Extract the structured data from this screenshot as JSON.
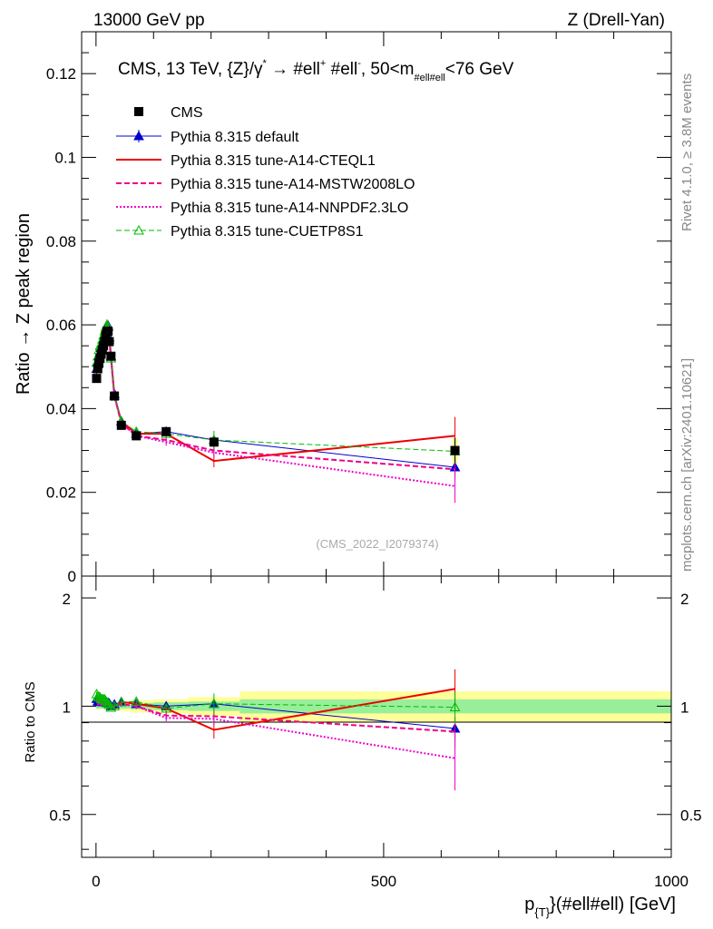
{
  "header": {
    "left": "13000 GeV pp",
    "right": "Z (Drell-Yan)",
    "side_top": "Rivet 4.1.0, ≥ 3.8M events",
    "side_bottom": "mcplots.cern.ch [arXiv:2401.10621]"
  },
  "chart_data": {
    "type": "line",
    "title": "CMS, 13 TeV, {Z}/γ* → #ell⁺ #ell⁻,  50<m#ell#ell<76 GeV",
    "title_parts": {
      "main": "CMS, 13 TeV, {Z}/γ",
      "star": "*",
      "arrow": " →  #ell",
      "plus": "+",
      "mid": " #ell",
      "minus": "-",
      "range_start": ",  50<m",
      "range_sub": "#ell#ell",
      "range_end": "<76 GeV"
    },
    "watermark": "(CMS_2022_I2079374)",
    "xlabel": "p",
    "xlabel_sub": "{T}",
    "xlabel_rest": "}(#ell#ell) [GeV]",
    "ylabel": "Ratio → Z peak region",
    "ratio_ylabel": "Ratio to CMS",
    "xlim": [
      -25,
      1000
    ],
    "ylim": [
      0,
      0.13
    ],
    "ratio_ylim": [
      0.38,
      2.3
    ],
    "x_ticks": [
      "0",
      "500",
      "1000"
    ],
    "y_ticks": [
      "0",
      "0.02",
      "0.04",
      "0.06",
      "0.08",
      "0.1",
      "0.12"
    ],
    "ratio_y_ticks": [
      "0.5",
      "1",
      "2"
    ],
    "x": [
      1,
      3,
      5,
      7,
      9,
      11,
      13,
      15,
      17,
      19,
      21,
      23,
      26,
      32,
      44,
      70,
      122,
      205,
      624
    ],
    "data": {
      "name": "CMS",
      "values": [
        0.0472,
        0.0495,
        0.0508,
        0.052,
        0.053,
        0.054,
        0.055,
        0.056,
        0.0575,
        0.0585,
        0.0585,
        0.056,
        0.0525,
        0.043,
        0.036,
        0.0335,
        0.0345,
        0.032,
        0.03
      ],
      "errors": [
        0.001,
        0.001,
        0.001,
        0.001,
        0.001,
        0.001,
        0.001,
        0.001,
        0.001,
        0.001,
        0.001,
        0.001,
        0.001,
        0.0008,
        0.0007,
        0.0006,
        0.0008,
        0.001,
        0.003
      ]
    },
    "band_edges": [
      0,
      10,
      20,
      40,
      60,
      100,
      160,
      250,
      1000
    ],
    "band_stat": [
      0.015,
      0.015,
      0.015,
      0.015,
      0.02,
      0.025,
      0.03,
      0.045
    ],
    "band_total": [
      0.02,
      0.02,
      0.025,
      0.03,
      0.04,
      0.045,
      0.06,
      0.1
    ],
    "series": [
      {
        "name": "Pythia 8.315 default",
        "color": "#0000cc",
        "dash": "solid",
        "width": 1,
        "marker": "triangle-filled",
        "values": [
          0.0495,
          0.051,
          0.0525,
          0.0535,
          0.0545,
          0.0555,
          0.0565,
          0.0575,
          0.059,
          0.0598,
          0.0598,
          0.057,
          0.0525,
          0.0435,
          0.037,
          0.034,
          0.0345,
          0.0325,
          0.026
        ],
        "errors": [
          0.0008,
          0.0008,
          0.0008,
          0.0008,
          0.0008,
          0.0008,
          0.0008,
          0.0008,
          0.0008,
          0.0008,
          0.0008,
          0.0008,
          0.0008,
          0.0007,
          0.0006,
          0.0006,
          0.0008,
          0.001,
          0.002
        ]
      },
      {
        "name": "Pythia 8.315 tune-A14-CTEQL1",
        "color": "#ee0000",
        "dash": "solid",
        "width": 2,
        "marker": "none",
        "values": [
          0.05,
          0.0515,
          0.053,
          0.054,
          0.055,
          0.056,
          0.057,
          0.058,
          0.0595,
          0.0605,
          0.06,
          0.0575,
          0.0525,
          0.043,
          0.037,
          0.034,
          0.034,
          0.0275,
          0.0335
        ],
        "errors": [
          0.0008,
          0.0008,
          0.0008,
          0.0008,
          0.0008,
          0.0008,
          0.0008,
          0.0008,
          0.0008,
          0.0008,
          0.0008,
          0.0008,
          0.0008,
          0.0007,
          0.0006,
          0.0006,
          0.001,
          0.0015,
          0.0045
        ]
      },
      {
        "name": "Pythia 8.315 tune-A14-MSTW2008LO",
        "color": "#ee0088",
        "dash": "dashed",
        "width": 2,
        "marker": "none",
        "values": [
          0.049,
          0.0505,
          0.052,
          0.053,
          0.054,
          0.055,
          0.056,
          0.057,
          0.0585,
          0.0595,
          0.059,
          0.0565,
          0.052,
          0.043,
          0.0365,
          0.0335,
          0.0325,
          0.03,
          0.0255
        ],
        "errors": [
          0.0008,
          0.0008,
          0.0008,
          0.0008,
          0.0008,
          0.0008,
          0.0008,
          0.0008,
          0.0008,
          0.0008,
          0.0008,
          0.0008,
          0.0008,
          0.0007,
          0.0006,
          0.0006,
          0.0009,
          0.0012,
          0.0025
        ]
      },
      {
        "name": "Pythia 8.315 tune-A14-NNPDF2.3LO",
        "color": "#ee00cc",
        "dash": "dotted",
        "width": 2,
        "marker": "none",
        "values": [
          0.049,
          0.0505,
          0.052,
          0.053,
          0.054,
          0.055,
          0.056,
          0.057,
          0.0585,
          0.0595,
          0.059,
          0.0565,
          0.052,
          0.043,
          0.0365,
          0.0335,
          0.032,
          0.0295,
          0.0215
        ],
        "errors": [
          0.0008,
          0.0008,
          0.0008,
          0.0008,
          0.0008,
          0.0008,
          0.0008,
          0.0008,
          0.0008,
          0.0008,
          0.0008,
          0.0008,
          0.0008,
          0.0007,
          0.0006,
          0.0006,
          0.0009,
          0.0012,
          0.004
        ]
      },
      {
        "name": "Pythia 8.315 tune-CUETP8S1",
        "color": "#00bb00",
        "dash": "dashed",
        "width": 1,
        "marker": "triangle-open",
        "values": [
          0.051,
          0.0525,
          0.054,
          0.055,
          0.0555,
          0.0565,
          0.0575,
          0.0585,
          0.0595,
          0.06,
          0.0595,
          0.0565,
          0.052,
          0.043,
          0.037,
          0.0345,
          0.034,
          0.0325,
          0.0298
        ],
        "errors": [
          0.0008,
          0.0008,
          0.0008,
          0.0008,
          0.0008,
          0.0008,
          0.0008,
          0.0008,
          0.0008,
          0.0008,
          0.0008,
          0.0008,
          0.0008,
          0.0007,
          0.0006,
          0.0006,
          0.0008,
          0.0022,
          0.003
        ]
      }
    ]
  }
}
